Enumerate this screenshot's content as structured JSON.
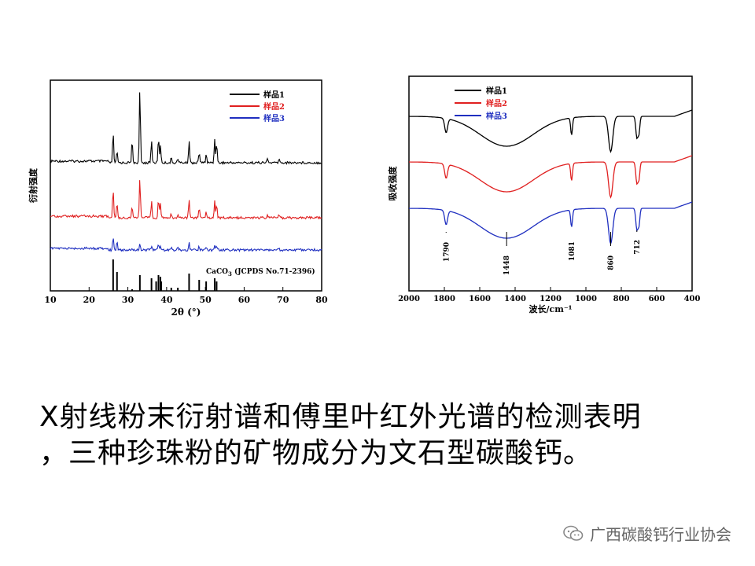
{
  "chart_data": [
    {
      "type": "line",
      "title": "",
      "xlabel": "2θ (°)",
      "ylabel": "衍射强度",
      "xlim": [
        10,
        80
      ],
      "xticks": [
        10,
        20,
        30,
        40,
        50,
        60,
        70,
        80
      ],
      "legend_position": "top-right",
      "series": [
        {
          "name": "样品1",
          "color": "#000000"
        },
        {
          "name": "样品2",
          "color": "#e02020"
        },
        {
          "name": "样品3",
          "color": "#1f2fc0"
        }
      ],
      "peaks_2theta": [
        26.2,
        27.2,
        31.1,
        33.1,
        36.1,
        37.9,
        38.4,
        41.2,
        42.9,
        45.8,
        48.4,
        50.2,
        52.4,
        52.9,
        66.0,
        69.0
      ],
      "peak_relative_intensity": {
        "样品1": [
          0.4,
          0.15,
          0.3,
          1.0,
          0.3,
          0.35,
          0.25,
          0.06,
          0.06,
          0.3,
          0.15,
          0.12,
          0.32,
          0.28,
          0.06,
          0.05
        ],
        "样品2": [
          0.6,
          0.3,
          0.25,
          0.85,
          0.35,
          0.4,
          0.3,
          0.08,
          0.08,
          0.4,
          0.2,
          0.15,
          0.35,
          0.3,
          0.06,
          0.05
        ],
        "样品3": [
          0.45,
          0.3,
          0.08,
          0.25,
          0.15,
          0.2,
          0.15,
          0.06,
          0.06,
          0.25,
          0.12,
          0.1,
          0.15,
          0.12,
          0.04,
          0.03
        ]
      },
      "reference": {
        "label": "CaCO3 (JCPDS No.71-2396)",
        "x": [
          26.2,
          27.2,
          31.1,
          33.1,
          36.1,
          37.3,
          37.9,
          38.4,
          38.6,
          41.2,
          42.9,
          45.8,
          48.4,
          50.2,
          52.4,
          52.9
        ],
        "values": [
          1.0,
          0.6,
          0.05,
          0.5,
          0.4,
          0.3,
          0.5,
          0.45,
          0.3,
          0.1,
          0.1,
          0.55,
          0.35,
          0.3,
          0.4,
          0.3
        ]
      }
    },
    {
      "type": "line",
      "title": "",
      "xlabel": "波长/cm⁻¹",
      "ylabel": "吸收强度",
      "xlim": [
        2000,
        400
      ],
      "xticks": [
        2000,
        1800,
        1600,
        1400,
        1200,
        1000,
        800,
        600,
        400
      ],
      "legend_position": "top-left",
      "series": [
        {
          "name": "样品1",
          "color": "#000000"
        },
        {
          "name": "样品2",
          "color": "#e02020"
        },
        {
          "name": "样品3",
          "color": "#1f2fc0"
        }
      ],
      "absorption_bands": [
        1790,
        1448,
        1081,
        860,
        712
      ],
      "band_labels": [
        "1790",
        "1448",
        "1081",
        "860",
        "712"
      ]
    }
  ],
  "caption": {
    "line1": "X射线粉末衍射谱和傅里叶红外光谱的检测表明",
    "line2": "，三种珍珠粉的矿物成分为文石型碳酸钙。"
  },
  "watermark": {
    "text": "广西碳酸钙行业协会",
    "icon": "wechat-icon"
  }
}
